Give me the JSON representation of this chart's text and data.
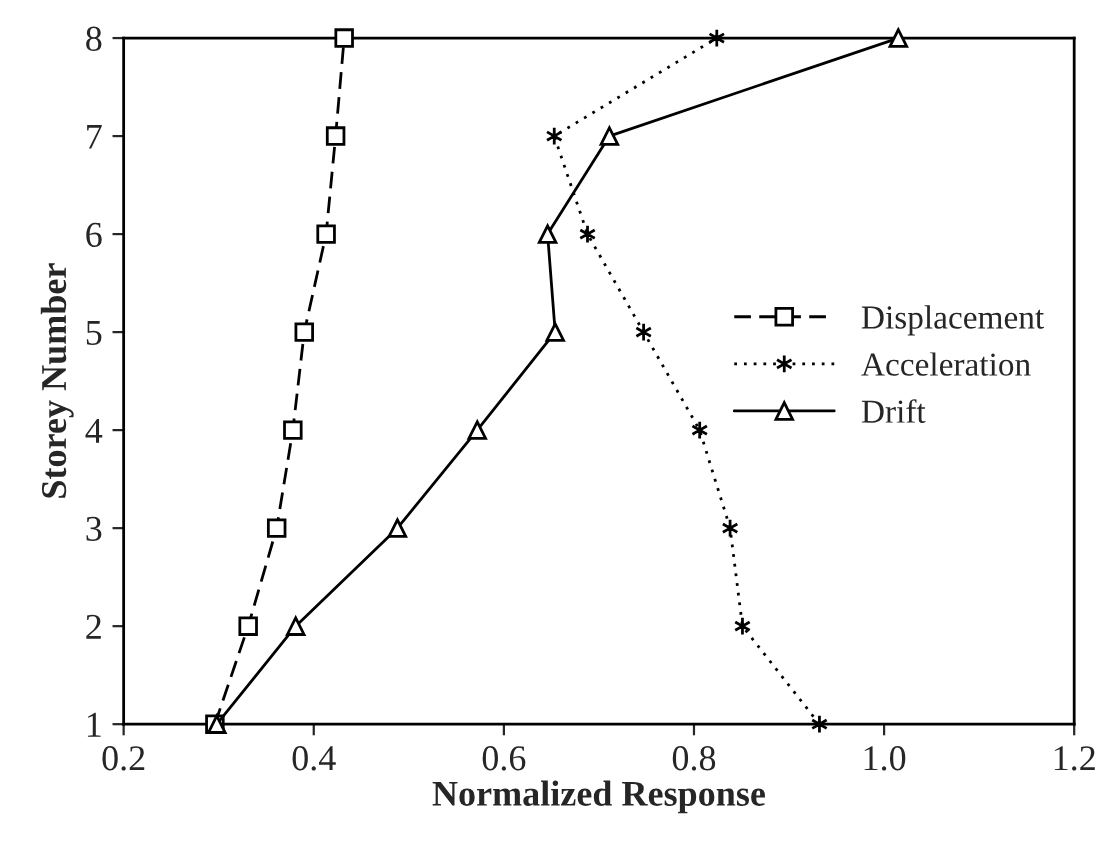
{
  "chart_data": {
    "type": "line",
    "orientation": "horizontal",
    "xlabel": "Normalized Response",
    "ylabel": "Storey Number",
    "x": [
      1,
      2,
      3,
      4,
      5,
      6,
      7,
      8
    ],
    "series": [
      {
        "name": "Displacement",
        "color": "#000000",
        "line_style": "dashed",
        "marker": "square",
        "values": [
          0.296,
          0.331,
          0.361,
          0.378,
          0.39,
          0.413,
          0.423,
          0.432
        ]
      },
      {
        "name": "Acceleration",
        "color": "#000000",
        "line_style": "dotted",
        "marker": "cross",
        "values": [
          0.932,
          0.851,
          0.838,
          0.806,
          0.747,
          0.688,
          0.653,
          0.824
        ]
      },
      {
        "name": "Drift",
        "color": "#000000",
        "line_style": "solid",
        "marker": "triangle",
        "values": [
          0.298,
          0.381,
          0.488,
          0.572,
          0.654,
          0.646,
          0.711,
          1.015
        ]
      }
    ],
    "xlim": [
      0.2,
      1.2
    ],
    "xticks": [
      {
        "value": 0.2,
        "label": "0.2"
      },
      {
        "value": 0.4,
        "label": "0.4"
      },
      {
        "value": 0.6,
        "label": "0.6"
      },
      {
        "value": 0.8,
        "label": "0.8"
      },
      {
        "value": 1,
        "label": "1.0"
      },
      {
        "value": 1.2,
        "label": "1.2"
      }
    ],
    "ylim": [
      1,
      8
    ],
    "yticks": [
      1,
      2,
      3,
      4,
      5,
      6,
      7,
      8
    ],
    "grid": false,
    "legend": "right"
  }
}
